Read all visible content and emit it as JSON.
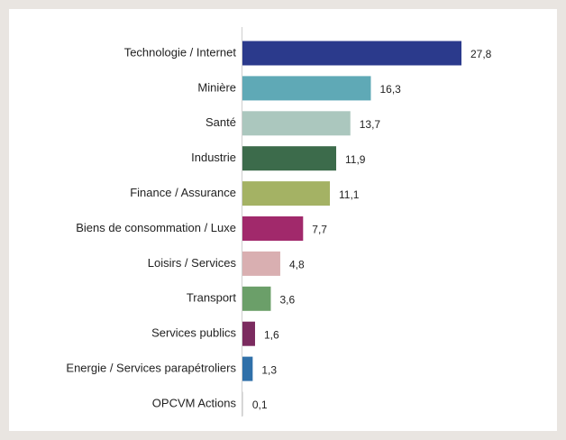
{
  "chart_data": {
    "type": "bar",
    "orientation": "horizontal",
    "categories": [
      "Technologie / Internet",
      "Minière",
      "Santé",
      "Industrie",
      "Finance / Assurance",
      "Biens de consommation / Luxe",
      "Loisirs / Services",
      "Transport",
      "Services publics",
      "Energie / Services parapétroliers",
      "OPCVM Actions"
    ],
    "values": [
      27.8,
      16.3,
      13.7,
      11.9,
      11.1,
      7.7,
      4.8,
      3.6,
      1.6,
      1.3,
      0.1
    ],
    "value_labels": [
      "27,8",
      "16,3",
      "13,7",
      "11,9",
      "11,1",
      "7,7",
      "4,8",
      "3,6",
      "1,6",
      "1,3",
      "0,1"
    ],
    "colors": [
      "#2b3a8c",
      "#5fa9b6",
      "#abc7be",
      "#3c6b4b",
      "#a4b264",
      "#a1296b",
      "#d9afb1",
      "#6b9f69",
      "#7b2b5f",
      "#2f70a9",
      "#d9d9d9"
    ]
  }
}
